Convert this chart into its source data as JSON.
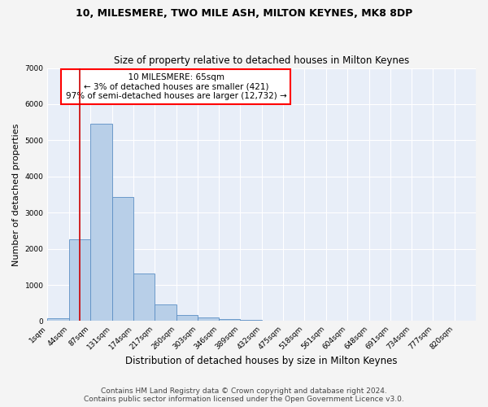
{
  "title": "10, MILESMERE, TWO MILE ASH, MILTON KEYNES, MK8 8DP",
  "subtitle": "Size of property relative to detached houses in Milton Keynes",
  "xlabel": "Distribution of detached houses by size in Milton Keynes",
  "ylabel": "Number of detached properties",
  "footnote1": "Contains HM Land Registry data © Crown copyright and database right 2024.",
  "footnote2": "Contains public sector information licensed under the Open Government Licence v3.0.",
  "annotation_line1": "  10 MILESMERE: 65sqm  ",
  "annotation_line2": "← 3% of detached houses are smaller (421)",
  "annotation_line3": "97% of semi-detached houses are larger (12,732) →",
  "bar_color": "#b8cfe8",
  "bar_edge_color": "#5b8ec4",
  "vline_color": "#cc0000",
  "vline_x": 65,
  "bin_edges": [
    1,
    44,
    87,
    131,
    174,
    217,
    260,
    303,
    346,
    389,
    432,
    475,
    518,
    561,
    604,
    648,
    691,
    734,
    777,
    820,
    863
  ],
  "bin_counts": [
    90,
    2270,
    5470,
    3430,
    1310,
    460,
    175,
    95,
    60,
    40,
    0,
    0,
    0,
    0,
    0,
    0,
    0,
    0,
    0,
    0
  ],
  "ylim": [
    0,
    7000
  ],
  "yticks": [
    0,
    1000,
    2000,
    3000,
    4000,
    5000,
    6000,
    7000
  ],
  "background_color": "#e8eef8",
  "grid_color": "#ffffff",
  "title_fontsize": 9,
  "subtitle_fontsize": 8.5,
  "xlabel_fontsize": 8.5,
  "ylabel_fontsize": 8,
  "tick_fontsize": 6.5,
  "annotation_fontsize": 7.5,
  "footnote_fontsize": 6.5
}
